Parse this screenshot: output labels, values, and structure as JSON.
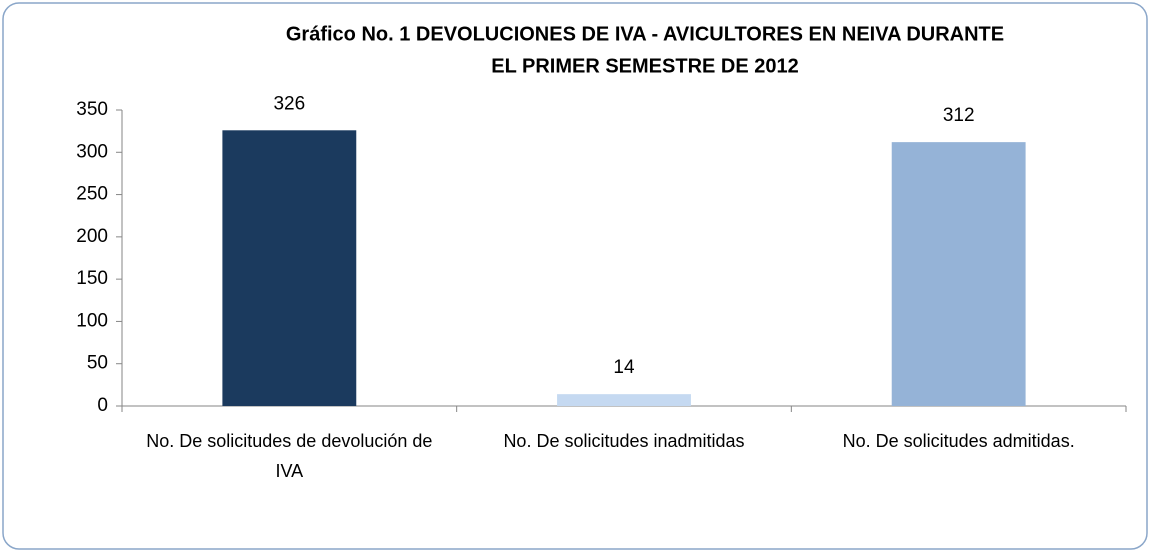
{
  "chart_data": {
    "type": "bar",
    "title": [
      "Gráfico No. 1 DEVOLUCIONES DE IVA - AVICULTORES EN NEIVA DURANTE",
      "EL PRIMER SEMESTRE DE 2012"
    ],
    "categories": [
      "No. De solicitudes de devolución de IVA",
      "No. De solicitudes inadmitidas",
      "No. De solicitudes admitidas."
    ],
    "values": [
      326,
      14,
      312
    ],
    "colors": [
      "#1b3a5e",
      "#c5d9f1",
      "#95b3d7"
    ],
    "ylim": [
      0,
      350
    ],
    "yticks": [
      0,
      50,
      100,
      150,
      200,
      250,
      300,
      350
    ],
    "grid": false
  }
}
